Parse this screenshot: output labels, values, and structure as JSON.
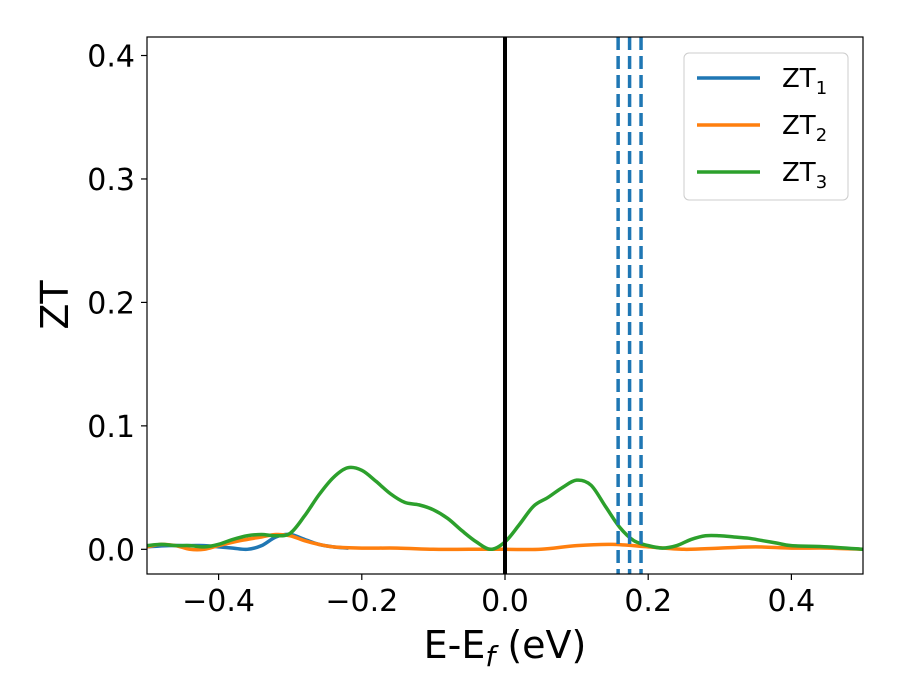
{
  "chart_data": {
    "type": "line",
    "xlabel_main": "E-E",
    "xlabel_sub": "f",
    "xlabel_unit": " (eV)",
    "ylabel": "ZT",
    "xlim": [
      -0.5,
      0.5
    ],
    "ylim": [
      -0.02,
      0.415
    ],
    "xticks": [
      -0.4,
      -0.2,
      0.0,
      0.2,
      0.4
    ],
    "xtick_labels": [
      "−0.4",
      "−0.2",
      "0.0",
      "0.2",
      "0.4"
    ],
    "yticks": [
      0.0,
      0.1,
      0.2,
      0.3,
      0.4
    ],
    "ytick_labels": [
      "0.0",
      "0.1",
      "0.2",
      "0.3",
      "0.4"
    ],
    "legend_position": "top-right",
    "fermi_line_x": 0.0,
    "fermi_line_color": "#000000",
    "dashed_lines": {
      "x": [
        0.158,
        0.174,
        0.19
      ],
      "color": "#1f77b4"
    },
    "series": [
      {
        "name": "ZT",
        "sub": "1",
        "color": "#1f77b4",
        "x": [
          -0.5,
          -0.47,
          -0.44,
          -0.42,
          -0.4,
          -0.38,
          -0.36,
          -0.34,
          -0.32,
          -0.3,
          -0.28,
          -0.26,
          -0.24,
          -0.22
        ],
        "y": [
          0.002,
          0.003,
          0.003,
          0.003,
          0.002,
          0.001,
          0.0,
          0.003,
          0.01,
          0.012,
          0.008,
          0.004,
          0.002,
          0.001
        ]
      },
      {
        "name": "ZT",
        "sub": "2",
        "color": "#ff7f0e",
        "x": [
          -0.5,
          -0.48,
          -0.46,
          -0.44,
          -0.42,
          -0.4,
          -0.37,
          -0.34,
          -0.32,
          -0.3,
          -0.28,
          -0.26,
          -0.24,
          -0.2,
          -0.15,
          -0.1,
          -0.05,
          0.0,
          0.05,
          0.1,
          0.15,
          0.2,
          0.25,
          0.3,
          0.35,
          0.4,
          0.45,
          0.5
        ],
        "y": [
          0.002,
          0.004,
          0.003,
          0.0,
          0.0,
          0.003,
          0.007,
          0.01,
          0.012,
          0.011,
          0.007,
          0.004,
          0.002,
          0.001,
          0.001,
          0.0,
          0.0,
          0.0,
          0.0,
          0.003,
          0.004,
          0.002,
          0.0,
          0.001,
          0.002,
          0.001,
          0.001,
          0.0
        ]
      },
      {
        "name": "ZT",
        "sub": "3",
        "color": "#2ca02c",
        "x": [
          -0.5,
          -0.48,
          -0.46,
          -0.44,
          -0.42,
          -0.4,
          -0.38,
          -0.36,
          -0.34,
          -0.32,
          -0.3,
          -0.28,
          -0.26,
          -0.24,
          -0.22,
          -0.2,
          -0.18,
          -0.16,
          -0.14,
          -0.12,
          -0.1,
          -0.08,
          -0.06,
          -0.04,
          -0.02,
          0.0,
          0.02,
          0.04,
          0.06,
          0.08,
          0.1,
          0.12,
          0.14,
          0.16,
          0.18,
          0.2,
          0.22,
          0.24,
          0.26,
          0.28,
          0.3,
          0.32,
          0.34,
          0.36,
          0.38,
          0.4,
          0.45,
          0.5
        ],
        "y": [
          0.003,
          0.004,
          0.003,
          0.003,
          0.002,
          0.004,
          0.008,
          0.011,
          0.012,
          0.011,
          0.013,
          0.027,
          0.044,
          0.058,
          0.066,
          0.064,
          0.055,
          0.045,
          0.038,
          0.036,
          0.032,
          0.025,
          0.015,
          0.006,
          0.0,
          0.006,
          0.02,
          0.035,
          0.042,
          0.05,
          0.056,
          0.052,
          0.035,
          0.018,
          0.007,
          0.003,
          0.001,
          0.003,
          0.008,
          0.011,
          0.011,
          0.01,
          0.009,
          0.007,
          0.005,
          0.003,
          0.002,
          0.0
        ]
      }
    ]
  }
}
